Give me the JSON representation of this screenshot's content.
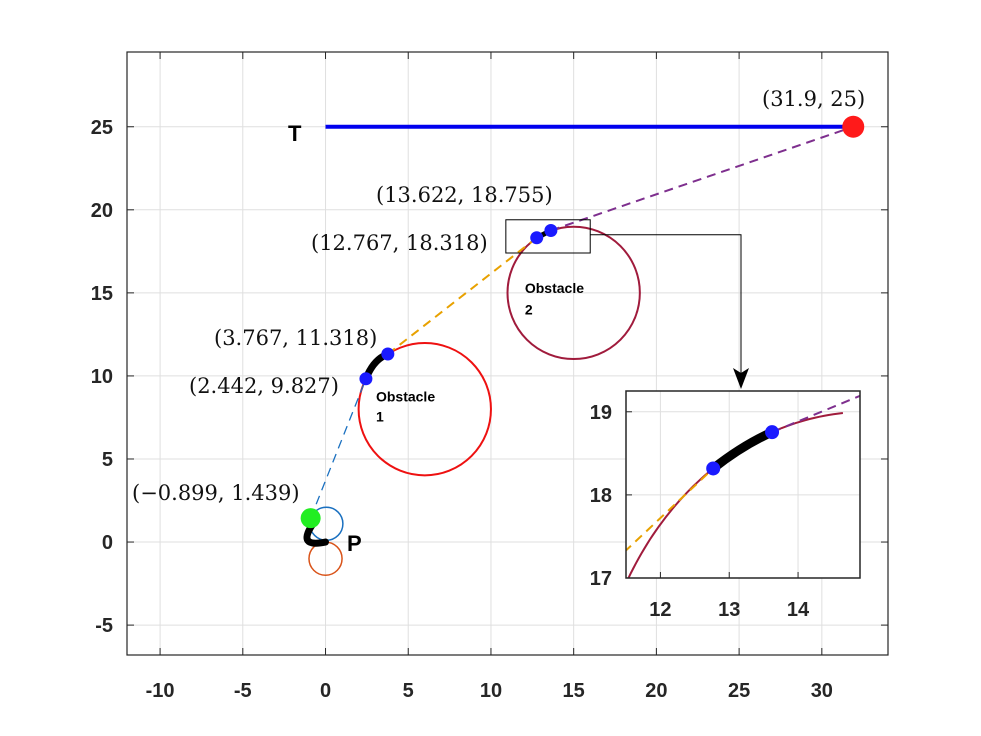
{
  "chart_data": {
    "type": "line",
    "title": "",
    "xlabel": "",
    "ylabel": "",
    "xlim": [
      -12,
      34
    ],
    "ylim": [
      -6.8,
      29.5
    ],
    "xticks": [
      -10,
      -5,
      0,
      5,
      10,
      15,
      20,
      25,
      30
    ],
    "xtick_labels": [
      "-10",
      "-5",
      "0",
      "5",
      "10",
      "15",
      "20",
      "25",
      "30"
    ],
    "yticks": [
      -5,
      0,
      5,
      10,
      15,
      20,
      25
    ],
    "ytick_labels": [
      "-5",
      "0",
      "5",
      "10",
      "15",
      "20",
      "25"
    ],
    "grid": true,
    "target_line": {
      "label": "T",
      "x": [
        0,
        31.9
      ],
      "y": [
        25,
        25
      ],
      "color": "#0000ee"
    },
    "target_point": {
      "x": 31.9,
      "y": 25,
      "label": "(31.9, 25)",
      "color": "#ff1a1a"
    },
    "pursuer": {
      "label": "P",
      "start": [
        0,
        0
      ],
      "color": "#000000"
    },
    "start_point": {
      "x": -0.899,
      "y": 1.439,
      "label": "(−0.899, 1.439)",
      "color": "#22ee22"
    },
    "key_points": [
      {
        "x": 2.442,
        "y": 9.827,
        "label": "(2.442, 9.827)"
      },
      {
        "x": 3.767,
        "y": 11.318,
        "label": "(3.767, 11.318)"
      },
      {
        "x": 12.767,
        "y": 18.318,
        "label": "(12.767, 18.318)"
      },
      {
        "x": 13.622,
        "y": 18.755,
        "label": "(13.622, 18.755)"
      }
    ],
    "obstacles": [
      {
        "name": "Obstacle",
        "number": "1",
        "cx": 6,
        "cy": 8,
        "r": 4,
        "color": "#ee1111"
      },
      {
        "name": "Obstacle",
        "number": "2",
        "cx": 15,
        "cy": 15,
        "r": 4,
        "color": "#a01b3c"
      }
    ],
    "turn_circles": [
      {
        "cx": 0.05,
        "cy": 1.1,
        "r": 1,
        "color": "#1a70c0"
      },
      {
        "cx": 0,
        "cy": -1,
        "r": 1,
        "color": "#d95319"
      }
    ],
    "segments": [
      {
        "style": "dashed",
        "color": "#1a70c0",
        "from": [
          -0.899,
          1.439
        ],
        "to": [
          2.442,
          9.827
        ]
      },
      {
        "style": "dashed",
        "color": "#e8a100",
        "from": [
          3.767,
          11.318
        ],
        "to": [
          12.767,
          18.318
        ]
      },
      {
        "style": "dashed",
        "color": "#7e2f8e",
        "from": [
          13.622,
          18.755
        ],
        "to": [
          31.9,
          25
        ]
      }
    ],
    "inset": {
      "xlim": [
        11.5,
        14.9
      ],
      "ylim": [
        17,
        19.25
      ],
      "xticks": [
        12,
        13,
        14
      ],
      "xtick_labels": [
        "12",
        "13",
        "14"
      ],
      "yticks": [
        17,
        18,
        19
      ],
      "ytick_labels": [
        "17",
        "18",
        "19"
      ],
      "zoom_box": {
        "x": [
          10.9,
          16.0
        ],
        "y": [
          17.4,
          19.4
        ]
      }
    }
  }
}
